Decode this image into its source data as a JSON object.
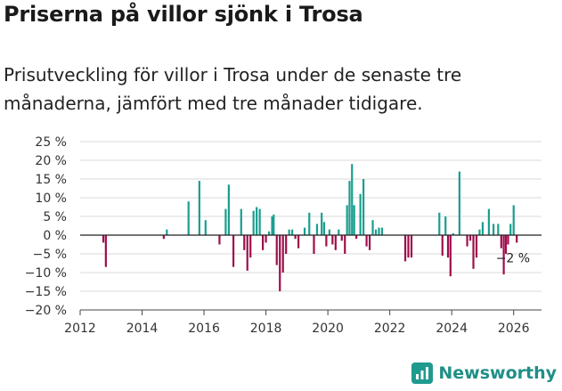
{
  "header": {
    "title": "Priserna på villor sjönk i Trosa",
    "subtitle": "Prisutveckling för villor i Trosa under de senaste tre månaderna, jämfört med tre månader tidigare."
  },
  "brand": {
    "name": "Newsworthy"
  },
  "colors": {
    "positive": "#1a9e8f",
    "negative": "#9e0e4b",
    "grid": "#d9d9d9",
    "axis": "#444444"
  },
  "chart_data": {
    "type": "bar",
    "title": "Priserna på villor sjönk i Trosa",
    "xlabel": "",
    "ylabel": "",
    "xlim": [
      2012,
      2026.9
    ],
    "ylim": [
      -20,
      25
    ],
    "y_ticks": [
      25,
      20,
      15,
      10,
      5,
      0,
      -5,
      -10,
      -15,
      -20
    ],
    "y_tick_labels": [
      "25 %",
      "20 %",
      "15 %",
      "10 %",
      "5 %",
      "0 %",
      "−5 %",
      "−10 %",
      "−15 %",
      "−20 %"
    ],
    "x_ticks": [
      2012,
      2014,
      2016,
      2018,
      2020,
      2022,
      2024,
      2026
    ],
    "x_tick_labels": [
      "2012",
      "2014",
      "2016",
      "2018",
      "2020",
      "2022",
      "2024",
      "2026"
    ],
    "annotation": {
      "text": "−2 %",
      "x": 2026.0,
      "y": -2
    },
    "x": [
      2012.75,
      2012.83,
      2014.7,
      2014.8,
      2015.5,
      2015.85,
      2016.05,
      2016.5,
      2016.7,
      2016.8,
      2016.95,
      2017.2,
      2017.3,
      2017.4,
      2017.5,
      2017.6,
      2017.7,
      2017.8,
      2017.9,
      2018.0,
      2018.1,
      2018.2,
      2018.25,
      2018.35,
      2018.45,
      2018.55,
      2018.65,
      2018.75,
      2018.85,
      2018.95,
      2019.05,
      2019.25,
      2019.4,
      2019.55,
      2019.65,
      2019.8,
      2019.88,
      2019.95,
      2020.05,
      2020.15,
      2020.25,
      2020.35,
      2020.45,
      2020.55,
      2020.62,
      2020.7,
      2020.78,
      2020.85,
      2020.92,
      2021.05,
      2021.15,
      2021.25,
      2021.35,
      2021.45,
      2021.55,
      2021.65,
      2021.75,
      2022.5,
      2022.6,
      2022.7,
      2023.6,
      2023.7,
      2023.8,
      2023.88,
      2023.96,
      2024.05,
      2024.25,
      2024.5,
      2024.6,
      2024.7,
      2024.8,
      2024.9,
      2025.0,
      2025.2,
      2025.35,
      2025.5,
      2025.6,
      2025.68,
      2025.75,
      2025.82,
      2025.9,
      2026.0,
      2026.1
    ],
    "values": [
      -2,
      -8.5,
      -1,
      1.5,
      9,
      14.5,
      4,
      -2.5,
      7,
      13.5,
      -8.5,
      7,
      -4,
      -9.5,
      -6,
      6.5,
      7.5,
      7,
      -4,
      -2,
      1,
      5,
      5.5,
      -8,
      -15,
      -10,
      -5,
      1.5,
      1.5,
      -1,
      -3.5,
      2,
      6,
      -5,
      3,
      6,
      3.5,
      -3,
      1.5,
      -2.5,
      -4,
      1.5,
      -1.5,
      -5,
      8,
      14.5,
      19,
      8,
      -1,
      11,
      15,
      -3,
      -4,
      4,
      1.5,
      2,
      2,
      -7,
      -6,
      -6,
      6,
      -5.5,
      5,
      -6,
      -11,
      0.5,
      17,
      -3,
      -1.5,
      -9,
      -6,
      1.5,
      3.5,
      7,
      3,
      3,
      -3.5,
      -10.5,
      -5,
      -2.5,
      3,
      8,
      -2
    ]
  }
}
